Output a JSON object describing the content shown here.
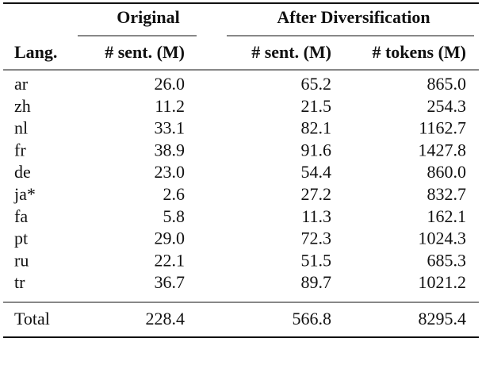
{
  "table": {
    "group_headers": [
      "Original",
      "After Diversification"
    ],
    "columns": [
      "Lang.",
      "# sent. (M)",
      "# sent. (M)",
      "# tokens (M)"
    ],
    "rows": [
      [
        "ar",
        "26.0",
        "65.2",
        "865.0"
      ],
      [
        "zh",
        "11.2",
        "21.5",
        "254.3"
      ],
      [
        "nl",
        "33.1",
        "82.1",
        "1162.7"
      ],
      [
        "fr",
        "38.9",
        "91.6",
        "1427.8"
      ],
      [
        "de",
        "23.0",
        "54.4",
        "860.0"
      ],
      [
        "ja*",
        "2.6",
        "27.2",
        "832.7"
      ],
      [
        "fa",
        "5.8",
        "11.3",
        "162.1"
      ],
      [
        "pt",
        "29.0",
        "72.3",
        "1024.3"
      ],
      [
        "ru",
        "22.1",
        "51.5",
        "685.3"
      ],
      [
        "tr",
        "36.7",
        "89.7",
        "1021.2"
      ]
    ],
    "total": [
      "Total",
      "228.4",
      "566.8",
      "8295.4"
    ]
  }
}
